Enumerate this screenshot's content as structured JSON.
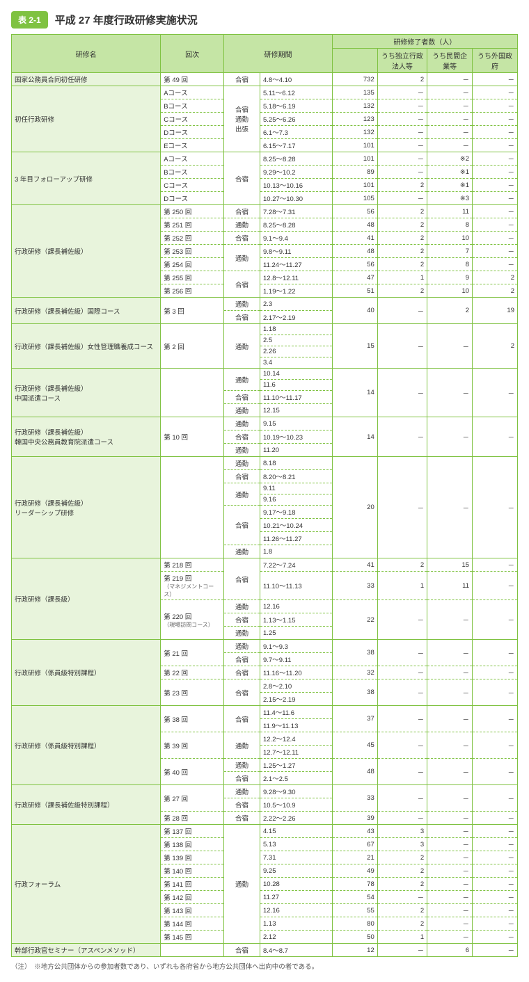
{
  "header": {
    "tag": "表 2-1",
    "title": "平成 27 年度行政研修実施状況"
  },
  "columns": {
    "name": "研修名",
    "kai": "回次",
    "period": "研修期間",
    "count_group": "研修修了者数（人）",
    "sub_dokuritsu": "うち独立行政法人等",
    "sub_minkan": "うち民間企業等",
    "sub_gaikoku": "うち外国政府"
  },
  "type_labels": {
    "gasshuku": "合宿",
    "tsukin": "通勤",
    "shucchou": "出張"
  },
  "rows": {
    "r1": {
      "name": "国家公務員合同初任研修",
      "kai": "第 49 回",
      "type": "合宿",
      "period": "4.8～4.10",
      "v1": "732",
      "v2": "2",
      "v3": "－",
      "v4": "－"
    },
    "r2": {
      "name": "初任行政研修",
      "type": "合宿\n通勤\n出張",
      "a": {
        "kai": "Aコース",
        "period": "5.11～6.12",
        "v1": "135",
        "v2": "－",
        "v3": "－",
        "v4": "－"
      },
      "b": {
        "kai": "Bコース",
        "period": "5.18～6.19",
        "v1": "132",
        "v2": "－",
        "v3": "－",
        "v4": "－"
      },
      "c": {
        "kai": "Cコース",
        "period": "5.25～6.26",
        "v1": "123",
        "v2": "－",
        "v3": "－",
        "v4": "－"
      },
      "d": {
        "kai": "Dコース",
        "period": "6.1～7.3",
        "v1": "132",
        "v2": "－",
        "v3": "－",
        "v4": "－"
      },
      "e": {
        "kai": "Eコース",
        "period": "6.15～7.17",
        "v1": "101",
        "v2": "－",
        "v3": "－",
        "v4": "－"
      }
    },
    "r3": {
      "name": "3 年目フォローアップ研修",
      "type": "合宿",
      "a": {
        "kai": "Aコース",
        "period": "8.25～8.28",
        "v1": "101",
        "v2": "－",
        "v3": "※2",
        "v4": "－"
      },
      "b": {
        "kai": "Bコース",
        "period": "9.29～10.2",
        "v1": "89",
        "v2": "－",
        "v3": "※1",
        "v4": "－"
      },
      "c": {
        "kai": "Cコース",
        "period": "10.13～10.16",
        "v1": "101",
        "v2": "2",
        "v3": "※1",
        "v4": "－"
      },
      "d": {
        "kai": "Dコース",
        "period": "10.27～10.30",
        "v1": "105",
        "v2": "－",
        "v3": "※3",
        "v4": "－"
      }
    },
    "r4": {
      "name": "行政研修（課長補佐級）",
      "a": {
        "kai": "第 250 回",
        "type": "合宿",
        "period": "7.28～7.31",
        "v1": "56",
        "v2": "2",
        "v3": "11",
        "v4": "－"
      },
      "b": {
        "kai": "第 251 回",
        "type": "通勤",
        "period": "8.25～8.28",
        "v1": "48",
        "v2": "2",
        "v3": "8",
        "v4": "－"
      },
      "c": {
        "kai": "第 252 回",
        "type": "合宿",
        "period": "9.1～9.4",
        "v1": "41",
        "v2": "2",
        "v3": "10",
        "v4": "－"
      },
      "d": {
        "kai": "第 253 回",
        "type": "通勤",
        "period": "9.8～9.11",
        "v1": "48",
        "v2": "2",
        "v3": "7",
        "v4": "－"
      },
      "e": {
        "kai": "第 254 回",
        "period": "11.24～11.27",
        "v1": "56",
        "v2": "2",
        "v3": "8",
        "v4": "－"
      },
      "f": {
        "kai": "第 255 回",
        "type": "合宿",
        "period": "12.8～12.11",
        "v1": "47",
        "v2": "1",
        "v3": "9",
        "v4": "2"
      },
      "g": {
        "kai": "第 256 回",
        "period": "1.19～1.22",
        "v1": "51",
        "v2": "2",
        "v3": "10",
        "v4": "2"
      }
    },
    "r5": {
      "name": "行政研修（課長補佐級）国際コース",
      "kai": "第 3 回",
      "t1": "通勤",
      "t2": "合宿",
      "p1": "2.3",
      "p2": "2.17～2.19",
      "v1": "40",
      "v2": "－",
      "v3": "2",
      "v4": "19"
    },
    "r6": {
      "name": "行政研修（課長補佐級）女性管理職養成コース",
      "kai": "第 2 回",
      "type": "通勤",
      "p1": "1.18",
      "p2": "2.5",
      "p3": "2.26",
      "p4": "3.4",
      "v1": "15",
      "v2": "－",
      "v3": "－",
      "v4": "2"
    },
    "r7": {
      "name": "行政研修（課長補佐級）\n中国派遣コース",
      "kai": "",
      "t1": "通勤",
      "t2": "合宿",
      "t3": "通勤",
      "p1": "10.14",
      "p2": "11.6",
      "p3": "11.10～11.17",
      "p4": "12.15",
      "v1": "14",
      "v2": "－",
      "v3": "－",
      "v4": "－"
    },
    "r8": {
      "name": "行政研修（課長補佐級）\n韓国中央公務員教育院派遣コース",
      "kai": "第 10 回",
      "t1": "通勤",
      "t2": "合宿",
      "t3": "通勤",
      "p1": "9.15",
      "p2": "10.19～10.23",
      "p3": "11.20",
      "v1": "14",
      "v2": "－",
      "v3": "－",
      "v4": "－"
    },
    "r9": {
      "name": "行政研修（課長補佐級）\nリーダーシップ研修",
      "kai": "",
      "t1": "通勤",
      "t2": "合宿",
      "t3": "通勤",
      "t4": "合宿",
      "t5": "通勤",
      "p1": "8.18",
      "p2": "8.20～8.21",
      "p3": "9.11",
      "p4": "9.16",
      "p5": "9.17～9.18",
      "p6": "10.21～10.24",
      "p7": "11.26～11.27",
      "p8": "1.8",
      "v1": "20",
      "v2": "－",
      "v3": "－",
      "v4": "－"
    },
    "r10": {
      "name": "行政研修（課長級）",
      "a": {
        "kai": "第 218 回",
        "type": "合宿",
        "period": "7.22～7.24",
        "v1": "41",
        "v2": "2",
        "v3": "15",
        "v4": "－"
      },
      "b": {
        "kai": "第 219 回",
        "sub": "（マネジメントコース）",
        "period": "11.10～11.13",
        "v1": "33",
        "v2": "1",
        "v3": "11",
        "v4": "－"
      },
      "c": {
        "kai": "第 220 回",
        "sub": "（現場訪問コース）",
        "t1": "通勤",
        "t2": "合宿",
        "t3": "通勤",
        "p1": "12.16",
        "p2": "1.13～1.15",
        "p3": "1.25",
        "v1": "22",
        "v2": "－",
        "v3": "－",
        "v4": "－"
      }
    },
    "r11": {
      "name": "行政研修（係員級特別課程）",
      "a": {
        "kai": "第 21 回",
        "t1": "通勤",
        "t2": "合宿",
        "p1": "9.1～9.3",
        "p2": "9.7～9.11",
        "v1": "38",
        "v2": "－",
        "v3": "－",
        "v4": "－"
      },
      "b": {
        "kai": "第 22 回",
        "type": "合宿",
        "period": "11.16～11.20",
        "v1": "32",
        "v2": "－",
        "v3": "－",
        "v4": "－"
      },
      "c": {
        "kai": "第 23 回",
        "type": "合宿",
        "p1": "2.8～2.10",
        "p2": "2.15～2.19",
        "v1": "38",
        "v2": "－",
        "v3": "－",
        "v4": "－"
      }
    },
    "r12": {
      "name": "行政研修（係員級特別課程）",
      "a": {
        "kai": "第 38 回",
        "type": "合宿",
        "p1": "11.4～11.6",
        "p2": "11.9～11.13",
        "v1": "37",
        "v2": "－",
        "v3": "－",
        "v4": "－"
      },
      "b": {
        "kai": "第 39 回",
        "type": "通勤",
        "p1": "12.2～12.4",
        "p2": "12.7～12.11",
        "v1": "45",
        "v2": "－",
        "v3": "－",
        "v4": "－"
      },
      "c": {
        "kai": "第 40 回",
        "t1": "通勤",
        "t2": "合宿",
        "p1": "1.25～1.27",
        "p2": "2.1～2.5",
        "v1": "48",
        "v2": "－",
        "v3": "－",
        "v4": "－"
      }
    },
    "r13": {
      "name": "行政研修（課長補佐級特別課程）",
      "a": {
        "kai": "第 27 回",
        "t1": "通勤",
        "t2": "合宿",
        "p1": "9.28～9.30",
        "p2": "10.5～10.9",
        "v1": "33",
        "v2": "－",
        "v3": "－",
        "v4": "－"
      },
      "b": {
        "kai": "第 28 回",
        "type": "合宿",
        "period": "2.22～2.26",
        "v1": "39",
        "v2": "－",
        "v3": "－",
        "v4": "－"
      }
    },
    "r14": {
      "name": "行政フォーラム",
      "type": "通勤",
      "a": {
        "kai": "第 137 回",
        "period": "4.15",
        "v1": "43",
        "v2": "3",
        "v3": "－",
        "v4": "－"
      },
      "b": {
        "kai": "第 138 回",
        "period": "5.13",
        "v1": "67",
        "v2": "3",
        "v3": "－",
        "v4": "－"
      },
      "c": {
        "kai": "第 139 回",
        "period": "7.31",
        "v1": "21",
        "v2": "2",
        "v3": "－",
        "v4": "－"
      },
      "d": {
        "kai": "第 140 回",
        "period": "9.25",
        "v1": "49",
        "v2": "2",
        "v3": "－",
        "v4": "－"
      },
      "e": {
        "kai": "第 141 回",
        "period": "10.28",
        "v1": "78",
        "v2": "2",
        "v3": "－",
        "v4": "－"
      },
      "f": {
        "kai": "第 142 回",
        "period": "11.27",
        "v1": "54",
        "v2": "－",
        "v3": "－",
        "v4": "－"
      },
      "g": {
        "kai": "第 143 回",
        "period": "12.16",
        "v1": "55",
        "v2": "2",
        "v3": "－",
        "v4": "－"
      },
      "h": {
        "kai": "第 144 回",
        "period": "1.13",
        "v1": "80",
        "v2": "2",
        "v3": "－",
        "v4": "－"
      },
      "i": {
        "kai": "第 145 回",
        "period": "2.12",
        "v1": "50",
        "v2": "1",
        "v3": "－",
        "v4": "－"
      }
    },
    "r15": {
      "name": "幹部行政官セミナー（アスペンメソッド）",
      "kai": "",
      "type": "合宿",
      "period": "8.4～8.7",
      "v1": "12",
      "v2": "－",
      "v3": "6",
      "v4": "－"
    }
  },
  "footnote": "（注）　※地方公共団体からの参加者数であり、いずれも各府省から地方公共団体へ出向中の者である。"
}
